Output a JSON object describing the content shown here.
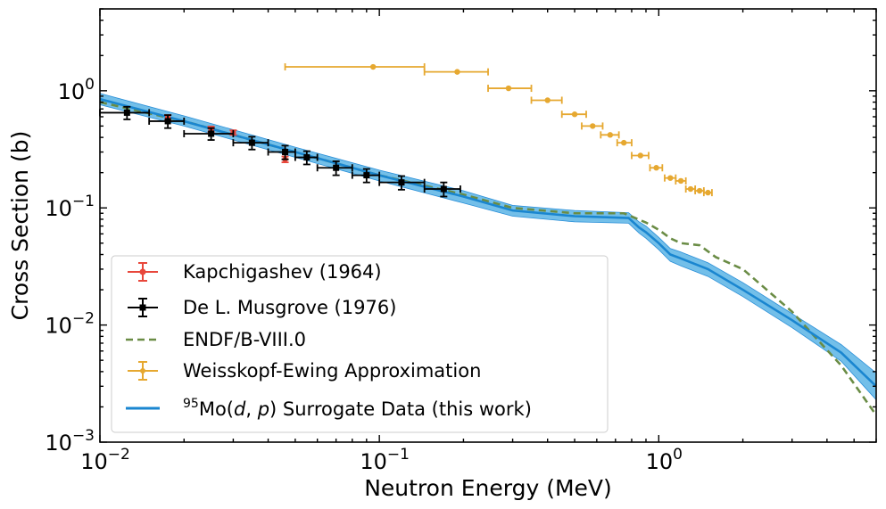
{
  "chart_data": {
    "type": "scatter",
    "xlabel": "Neutron Energy (MeV)",
    "ylabel": "Cross Section (b)",
    "xscale": "log",
    "yscale": "log",
    "xlim": [
      0.01,
      6
    ],
    "ylim": [
      0.001,
      5
    ],
    "x_ticks": [
      {
        "value": 0.01,
        "base": "10",
        "exp": "−2"
      },
      {
        "value": 0.1,
        "base": "10",
        "exp": "−1"
      },
      {
        "value": 1,
        "base": "10",
        "exp": "0"
      }
    ],
    "y_ticks": [
      {
        "value": 0.001,
        "base": "10",
        "exp": "−3"
      },
      {
        "value": 0.01,
        "base": "10",
        "exp": "−2"
      },
      {
        "value": 0.1,
        "base": "10",
        "exp": "−1"
      },
      {
        "value": 1,
        "base": "10",
        "exp": "0"
      }
    ],
    "legend_position": "lower-left",
    "series": [
      {
        "name": "Kapchigashev (1964)",
        "kind": "errorbar",
        "color": "#e8473b",
        "x": [
          0.0175,
          0.025,
          0.03,
          0.046
        ],
        "y": [
          0.59,
          0.47,
          0.44,
          0.26
        ],
        "yerr": [
          0.03,
          0.025,
          0.02,
          0.015
        ]
      },
      {
        "name": "De L. Musgrove (1976)",
        "kind": "errorbar",
        "color": "#000000",
        "x": [
          0.0125,
          0.0175,
          0.025,
          0.035,
          0.046,
          0.055,
          0.07,
          0.09,
          0.12,
          0.17
        ],
        "xlo": [
          0.01,
          0.015,
          0.02,
          0.03,
          0.04,
          0.05,
          0.06,
          0.08,
          0.1,
          0.145
        ],
        "xhi": [
          0.015,
          0.02,
          0.03,
          0.04,
          0.05,
          0.06,
          0.08,
          0.1,
          0.145,
          0.195
        ],
        "y": [
          0.65,
          0.55,
          0.43,
          0.36,
          0.3,
          0.27,
          0.22,
          0.19,
          0.165,
          0.145
        ],
        "yerr": [
          0.08,
          0.07,
          0.05,
          0.045,
          0.04,
          0.035,
          0.03,
          0.025,
          0.022,
          0.02
        ]
      },
      {
        "name": "ENDF/B-VIII.0",
        "kind": "line",
        "style": "dashed",
        "color": "#6a8c45",
        "x": [
          0.01,
          0.02,
          0.05,
          0.1,
          0.2,
          0.3,
          0.5,
          0.75,
          0.9,
          1.0,
          1.1,
          1.2,
          1.4,
          1.6,
          2.0,
          3.0,
          4.5,
          6.0
        ],
        "y": [
          0.8,
          0.55,
          0.3,
          0.19,
          0.13,
          0.1,
          0.09,
          0.09,
          0.075,
          0.065,
          0.055,
          0.05,
          0.048,
          0.038,
          0.03,
          0.013,
          0.0045,
          0.0017
        ]
      },
      {
        "name": "Weisskopf-Ewing Approximation",
        "kind": "errorbar",
        "color": "#e6a830",
        "x": [
          0.095,
          0.19,
          0.29,
          0.4,
          0.5,
          0.58,
          0.67,
          0.75,
          0.86,
          0.98,
          1.1,
          1.2,
          1.3,
          1.4,
          1.5
        ],
        "xlo": [
          0.046,
          0.145,
          0.245,
          0.35,
          0.45,
          0.53,
          0.62,
          0.71,
          0.8,
          0.93,
          1.05,
          1.15,
          1.25,
          1.35,
          1.45
        ],
        "xhi": [
          0.145,
          0.245,
          0.35,
          0.45,
          0.55,
          0.63,
          0.72,
          0.8,
          0.92,
          1.03,
          1.15,
          1.25,
          1.35,
          1.45,
          1.55
        ],
        "y": [
          1.6,
          1.45,
          1.05,
          0.83,
          0.63,
          0.5,
          0.42,
          0.36,
          0.28,
          0.22,
          0.18,
          0.17,
          0.145,
          0.14,
          0.135
        ]
      },
      {
        "name": "Surrogate Data (this work)",
        "label_pre": "95",
        "label_el": "Mo(",
        "label_d": "d",
        "label_sep": ", ",
        "label_p": "p",
        "label_post": ") Surrogate Data (this work)",
        "kind": "line-band",
        "color": "#1a86d0",
        "band_color": "#5ab4e5",
        "x": [
          0.01,
          0.02,
          0.05,
          0.1,
          0.2,
          0.3,
          0.5,
          0.78,
          0.85,
          0.9,
          1.0,
          1.1,
          1.2,
          1.5,
          2.0,
          3.0,
          4.5,
          6.0
        ],
        "y": [
          0.85,
          0.55,
          0.3,
          0.19,
          0.125,
          0.095,
          0.085,
          0.082,
          0.068,
          0.062,
          0.05,
          0.04,
          0.037,
          0.03,
          0.02,
          0.011,
          0.0058,
          0.003
        ],
        "y_low": [
          0.76,
          0.5,
          0.27,
          0.17,
          0.11,
          0.085,
          0.076,
          0.074,
          0.061,
          0.055,
          0.044,
          0.035,
          0.032,
          0.026,
          0.0175,
          0.0095,
          0.0049,
          0.0023
        ],
        "y_high": [
          0.95,
          0.61,
          0.33,
          0.21,
          0.14,
          0.105,
          0.095,
          0.091,
          0.076,
          0.07,
          0.056,
          0.045,
          0.042,
          0.034,
          0.023,
          0.0125,
          0.0068,
          0.0039
        ]
      }
    ]
  }
}
